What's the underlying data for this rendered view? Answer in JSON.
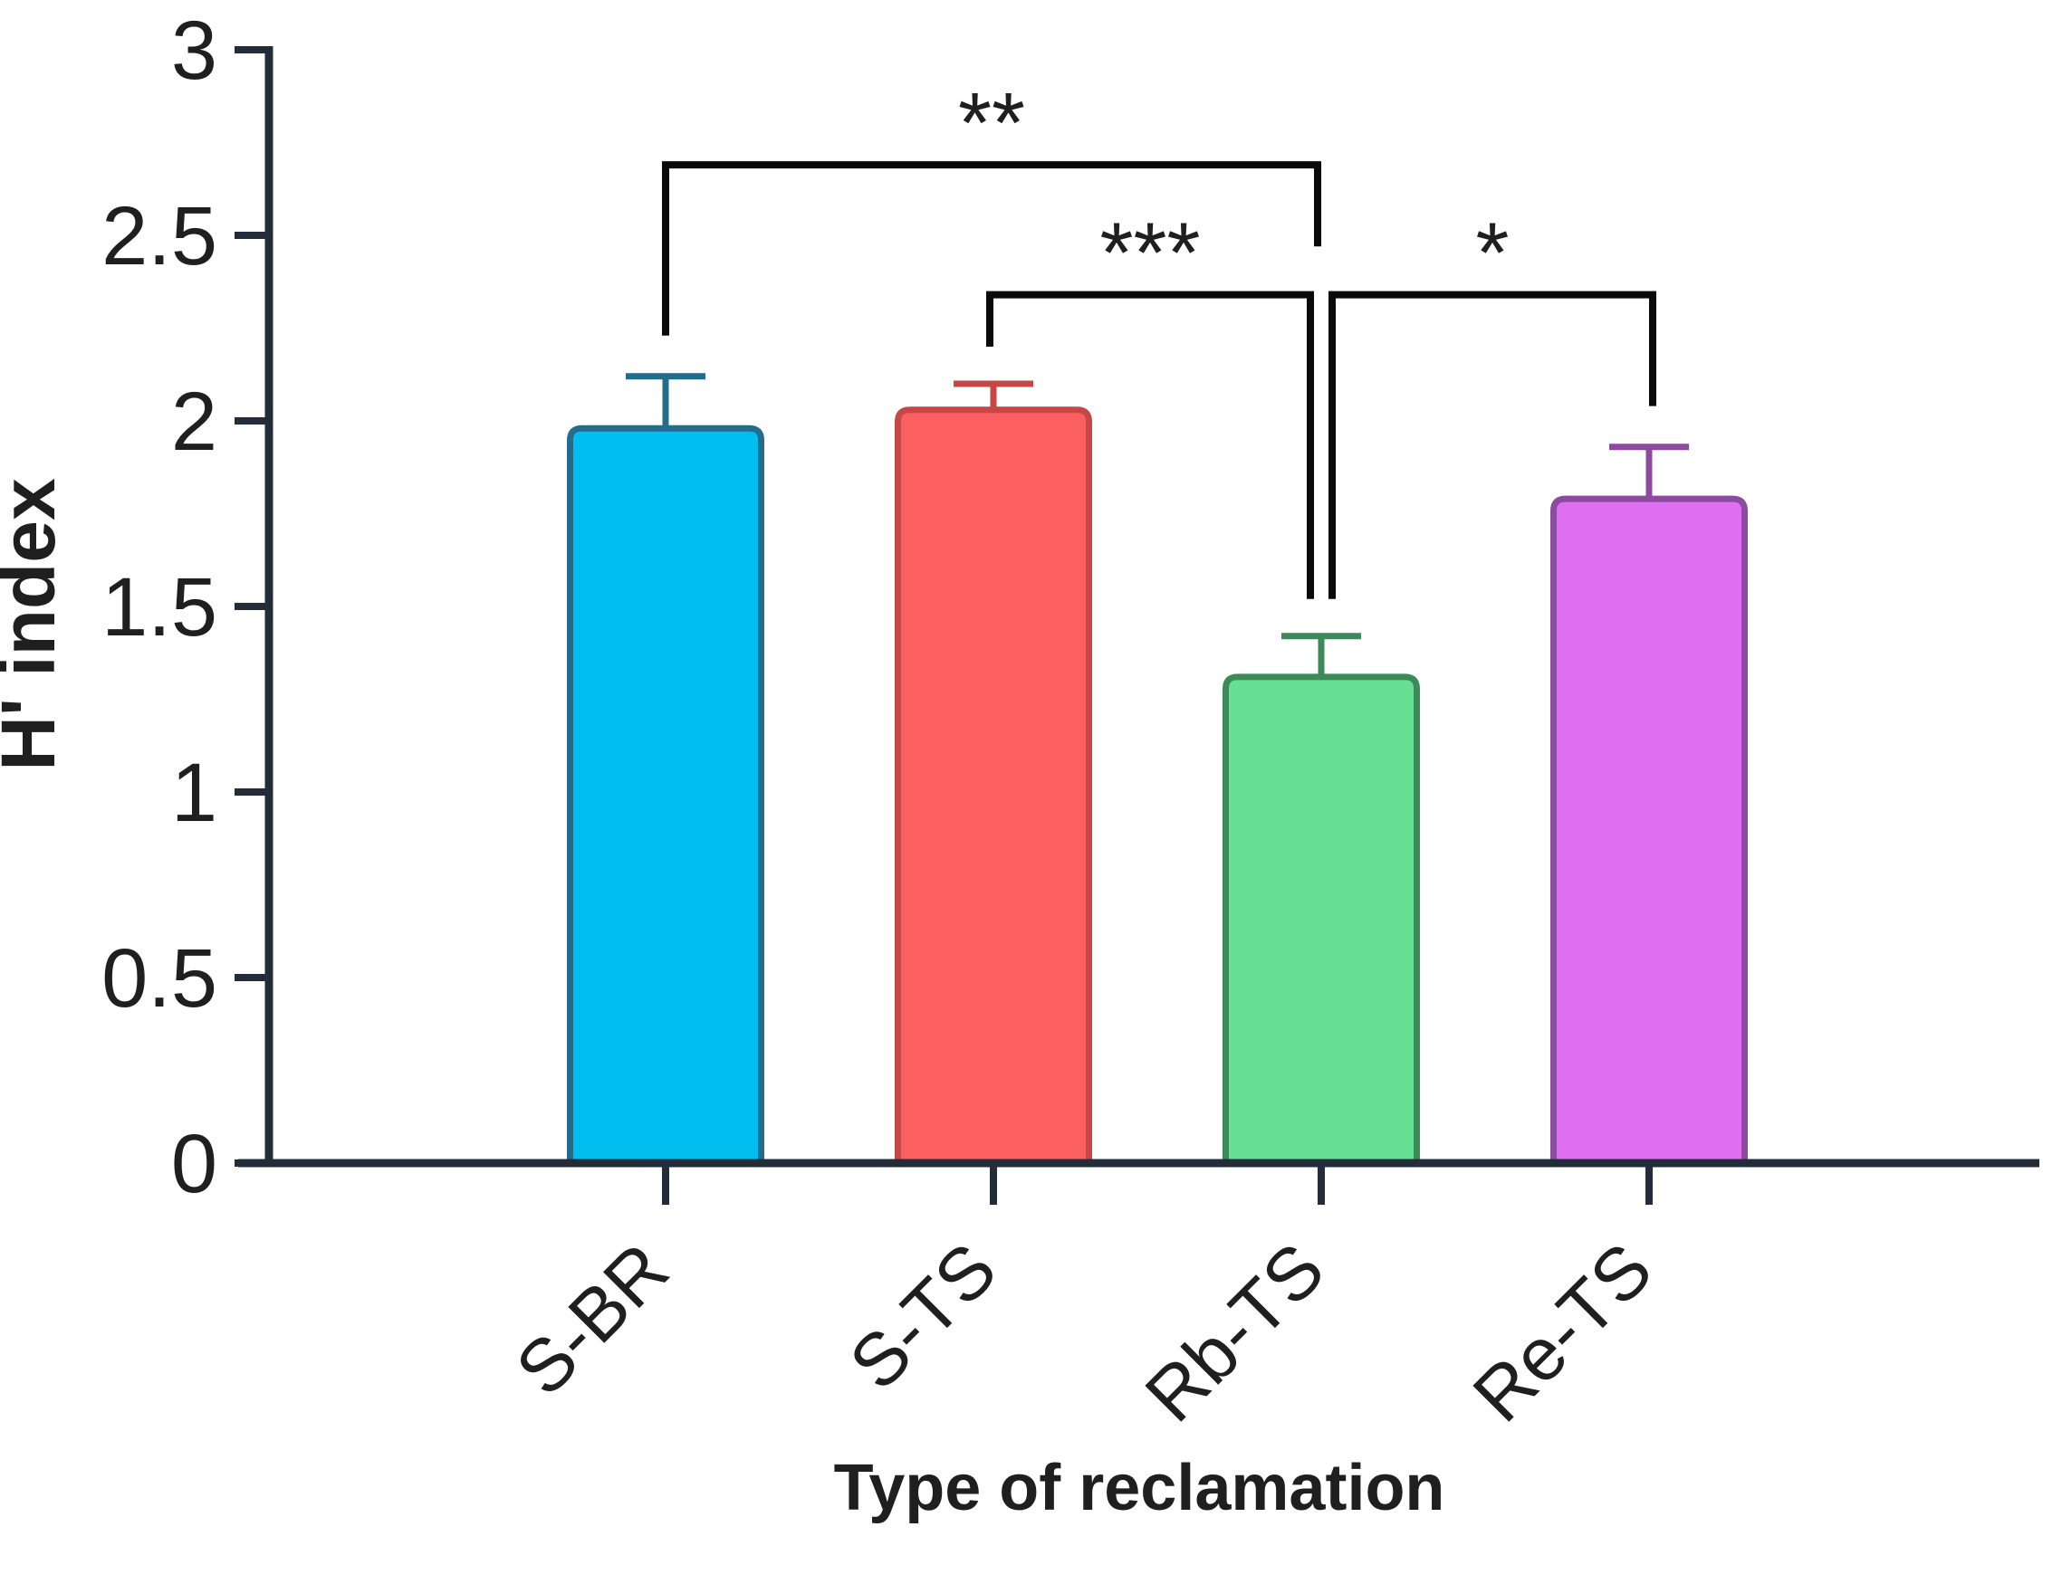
{
  "page": {
    "background": "#ffffff"
  },
  "colors": {
    "axis": "#232d3a",
    "bracket": "#0a0a0a",
    "text": "#1f1f1f"
  },
  "chart_data": {
    "type": "bar",
    "title": "",
    "xlabel": "Type of reclamation",
    "ylabel": "H' index",
    "categories": [
      "S-BR",
      "S-TS",
      "Rb-TS",
      "Re-TS"
    ],
    "values": [
      1.98,
      2.03,
      1.31,
      1.79
    ],
    "error_upper": [
      0.14,
      0.07,
      0.11,
      0.14
    ],
    "ylim": [
      0,
      3
    ],
    "yticks": [
      "0",
      "0.5",
      "1",
      "1.5",
      "2",
      "2.5",
      "3"
    ],
    "grid": false,
    "legend": "none",
    "bars": [
      {
        "category": "S-BR",
        "value": 1.98,
        "error_top": 2.12,
        "fill": "#00bff0",
        "edge": "#236c8c"
      },
      {
        "category": "S-TS",
        "value": 2.03,
        "error_top": 2.1,
        "fill": "#fc5f5f",
        "edge": "#c74747"
      },
      {
        "category": "Rb-TS",
        "value": 1.31,
        "error_top": 1.42,
        "fill": "#68e093",
        "edge": "#3d8a59"
      },
      {
        "category": "Re-TS",
        "value": 1.79,
        "error_top": 1.93,
        "fill": "#de6ff1",
        "edge": "#8d4ba0"
      }
    ],
    "significance": [
      {
        "label": "**",
        "from": "S-BR",
        "to": "Rb-TS",
        "line_value": 2.69,
        "from_drop_value": 2.23,
        "to_drop_value": 2.47,
        "from_dx": 0,
        "to_dx": -4
      },
      {
        "label": "***",
        "from": "S-TS",
        "to": "Rb-TS",
        "line_value": 2.34,
        "from_drop_value": 2.2,
        "to_drop_value": 1.52,
        "from_dx": -4,
        "to_dx": -12
      },
      {
        "label": "*",
        "from": "Rb-TS",
        "to": "Re-TS",
        "line_value": 2.34,
        "from_drop_value": 1.52,
        "to_drop_value": 2.04,
        "from_dx": 12,
        "to_dx": 4
      }
    ]
  }
}
